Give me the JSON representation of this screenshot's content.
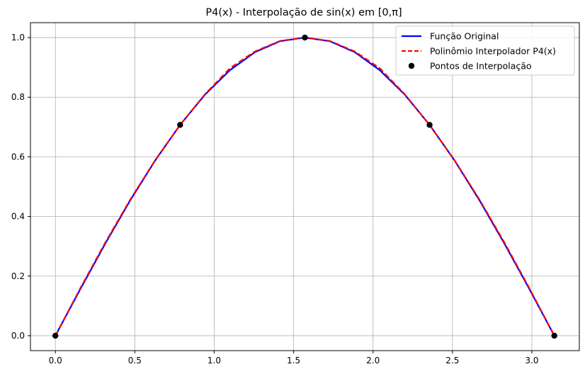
{
  "chart_data": {
    "type": "line",
    "title": "P4(x) - Interpolação de sin(x) em [0,π]",
    "xlabel": "",
    "ylabel": "",
    "xlim": [
      -0.157,
      3.299
    ],
    "ylim": [
      -0.05,
      1.05
    ],
    "grid": true,
    "legend_position": "top-right",
    "x_ticks": [
      0.0,
      0.5,
      1.0,
      1.5,
      2.0,
      2.5,
      3.0
    ],
    "x_tick_labels": [
      "0.0",
      "0.5",
      "1.0",
      "1.5",
      "2.0",
      "2.5",
      "3.0"
    ],
    "y_ticks": [
      0.0,
      0.2,
      0.4,
      0.6,
      0.8,
      1.0
    ],
    "y_tick_labels": [
      "0.0",
      "0.2",
      "0.4",
      "0.6",
      "0.8",
      "1.0"
    ],
    "series": [
      {
        "name": "Função Original",
        "style": "solid",
        "color": "#0000ff",
        "x": [
          0.0,
          0.1571,
          0.3142,
          0.4712,
          0.6283,
          0.7854,
          0.9425,
          1.0996,
          1.2566,
          1.4137,
          1.5708,
          1.7279,
          1.885,
          2.042,
          2.1991,
          2.3562,
          2.5133,
          2.6704,
          2.8274,
          2.9845,
          3.1416
        ],
        "y": [
          0.0,
          0.1564,
          0.309,
          0.454,
          0.5878,
          0.7071,
          0.809,
          0.891,
          0.9511,
          0.9877,
          1.0,
          0.9877,
          0.9511,
          0.891,
          0.809,
          0.7071,
          0.5878,
          0.454,
          0.309,
          0.1564,
          0.0
        ]
      },
      {
        "name": "Polinômio Interpolador P4(x)",
        "style": "dashed",
        "color": "#ff0000",
        "x": [
          0.0,
          0.1571,
          0.3142,
          0.4712,
          0.6283,
          0.7854,
          0.9425,
          1.0996,
          1.2566,
          1.4137,
          1.5708,
          1.7279,
          1.885,
          2.042,
          2.1991,
          2.3562,
          2.5133,
          2.6704,
          2.8274,
          2.9845,
          3.1416
        ],
        "y": [
          0.0,
          0.1593,
          0.3125,
          0.4565,
          0.5887,
          0.7071,
          0.8103,
          0.8973,
          0.9535,
          0.9886,
          1.0,
          0.9886,
          0.9535,
          0.8973,
          0.8103,
          0.7071,
          0.5887,
          0.4565,
          0.3125,
          0.1593,
          0.0
        ]
      },
      {
        "name": "Pontos de Interpolação",
        "style": "scatter",
        "color": "#000000",
        "x": [
          0.0,
          0.7854,
          1.5708,
          2.3562,
          3.1416
        ],
        "y": [
          0.0,
          0.7071,
          1.0,
          0.7071,
          0.0
        ]
      }
    ]
  }
}
